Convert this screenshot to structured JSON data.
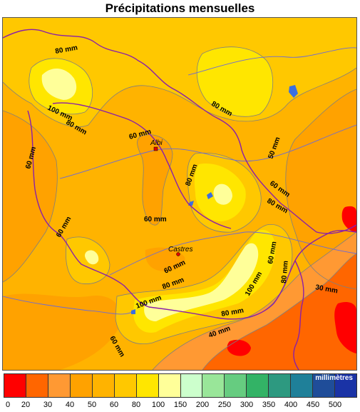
{
  "title": "Précipitations mensuelles",
  "contour_labels": [
    "80 mm",
    "100 mm",
    "80 mm",
    "60 mm",
    "80 mm",
    "50 mm",
    "60 mm",
    "80 mm",
    "60 mm",
    "80 mm",
    "60 mm",
    "60 mm",
    "80 mm",
    "60 mm",
    "100 mm",
    "100 mm",
    "80 mm",
    "80 mm",
    "60 mm",
    "60 mm",
    "40 mm",
    "30 mm"
  ],
  "cities": [
    {
      "name": "Albi",
      "color": "#e00000"
    },
    {
      "name": "Castres",
      "color": "#e00000"
    }
  ],
  "colors": {
    "border": "#8a1fa8",
    "rivers": "#6b6bd6",
    "contour": "#7f7f7f",
    "lake": "#3a6fe0"
  },
  "legend": {
    "unit": "millimètres",
    "ticks": [
      "0",
      "20",
      "30",
      "40",
      "50",
      "60",
      "80",
      "100",
      "150",
      "200",
      "250",
      "300",
      "350",
      "400",
      "450",
      "500"
    ],
    "colors": [
      "#ff0000",
      "#ff6600",
      "#ff9933",
      "#ffa200",
      "#ffb300",
      "#ffc800",
      "#ffe600",
      "#ffff99",
      "#ccffcc",
      "#99e699",
      "#66cc80",
      "#33b366",
      "#2d9980",
      "#1f8099",
      "#1f4d99",
      "#1a33a6"
    ]
  }
}
